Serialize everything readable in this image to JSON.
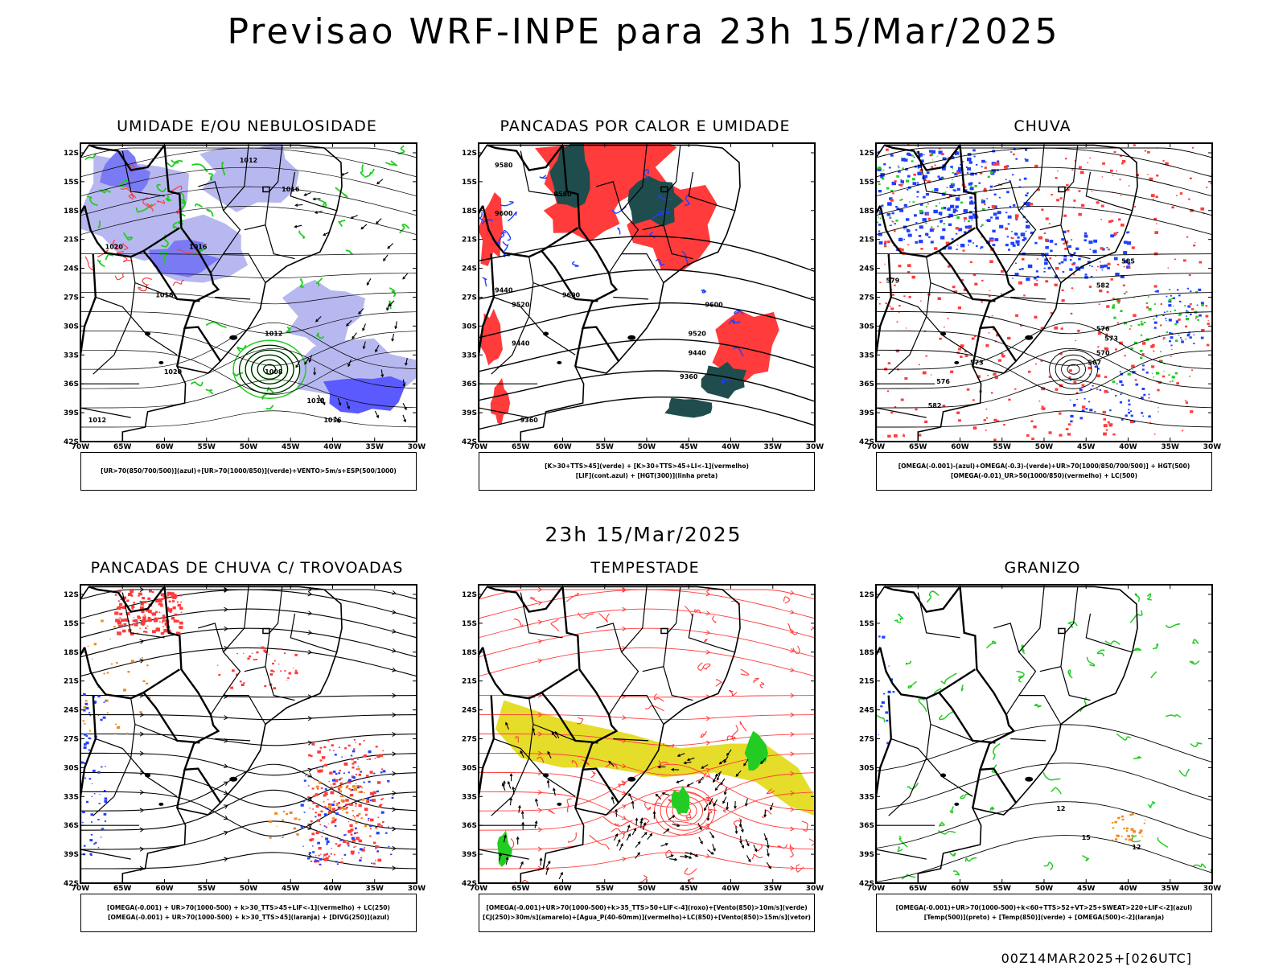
{
  "header": {
    "title": "Previsao WRF-INPE  para 23h 15/Mar/2025"
  },
  "subheader": {
    "title": "23h 15/Mar/2025"
  },
  "footer": {
    "stamp": "00Z14MAR2025+[026UTC]"
  },
  "axes": {
    "lat_labels": [
      "12S",
      "15S",
      "18S",
      "21S",
      "24S",
      "27S",
      "30S",
      "33S",
      "36S",
      "39S",
      "42S"
    ],
    "lon_labels": [
      "70W",
      "65W",
      "60W",
      "55W",
      "50W",
      "45W",
      "40W",
      "35W",
      "30W"
    ]
  },
  "colors": {
    "blue": "#1f3fff",
    "green": "#22cc22",
    "red": "#ff3b3b",
    "light_purple": "#b8b8f0",
    "dark_teal": "#1f4d4d",
    "yellow": "#e6dc2a",
    "orange": "#f08a24"
  },
  "panels": [
    {
      "title": "UMIDADE E/OU NEBULOSIDADE",
      "legend": [
        "[UR>70(850/700/500)](azul)+[UR>70(1000/850)](verde)+VENTO>5m/s+ESP(500/1000)"
      ],
      "contour_labels": [
        "1012",
        "1016",
        "1016",
        "1020",
        "1016",
        "1012",
        "1008",
        "1012",
        "1016",
        "1020",
        "1012"
      ]
    },
    {
      "title": "PANCADAS POR CALOR E UMIDADE",
      "legend": [
        "[K>30+TTS>45](verde) + [K>30+TTS>45+LI<-1](vermelho)",
        "[LIF](cont.azul) + [HGT(300)](linha preta)"
      ],
      "contour_labels": [
        "9580",
        "9580",
        "9600",
        "9440",
        "9520",
        "9600",
        "9440",
        "9600",
        "9520",
        "9440",
        "9360",
        "9360"
      ]
    },
    {
      "title": "CHUVA",
      "legend": [
        "[OMEGA(-0.001)-(azul)+OMEGA(-0.3)-(verde)+UR>70(1000/850/700/500)] + HGT(500)",
        "[OMEGA(-0.01)_UR>50(1000/850)(vermelho) + LC(500)"
      ],
      "contour_labels": [
        "582",
        "585",
        "579",
        "576",
        "573",
        "570",
        "567",
        "573",
        "576",
        "582"
      ]
    },
    {
      "title": "PANCADAS DE CHUVA C/ TROVOADAS",
      "legend": [
        "[OMEGA(-0.001) + UR>70(1000-500) + k>30_TTS>45+LIF<-1](vermelho) + LC(250)",
        "[OMEGA(-0.001) + UR>70(1000-500) + k>30_TTS>45](laranja) + [DIVG(250)](azul)"
      ],
      "contour_labels": []
    },
    {
      "title": "TEMPESTADE",
      "legend": [
        "[OMEGA(-0.001)+UR>70(1000-500)+k>35_TTS>50+LIF<-4](roxo)+[Vento(850)>10m/s](verde)",
        "[CJ(250)>30m/s](amarelo)+[Agua_P(40-60mm)](vermelho)+LC(850)+[Vento(850)>15m/s](vetor)"
      ],
      "contour_labels": []
    },
    {
      "title": "GRANIZO",
      "legend": [
        "[OMEGA(-0.001)+UR>70(1000-500)+k<60+TTS>52+VT>25+SWEAT>220+LIF<-2](azul)",
        "[Temp(500)](preto) + [Temp(850)](verde) + [OMEGA(500)<-2](laranja)"
      ],
      "contour_labels": [
        "12",
        "15",
        "12"
      ]
    }
  ]
}
